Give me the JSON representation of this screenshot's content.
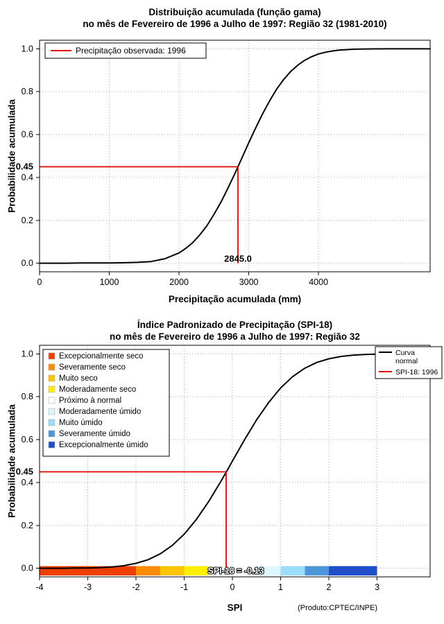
{
  "colors": {
    "background": "#ffffff",
    "grid": "#aaaaaa",
    "axis": "#000000",
    "curve": "#000000",
    "highlight": "#e00000"
  },
  "chart_data": [
    {
      "type": "line",
      "title": "Distribuição acumulada (função gama)",
      "subtitle": "no mês de Fevereiro de 1996 a Julho de 1997: Região 32 (1981-2010)",
      "xlabel": "Precipitação acumulada (mm)",
      "ylabel": "Probabilidade acumulada",
      "xlim": [
        0,
        5600
      ],
      "ylim": [
        0,
        1
      ],
      "xticks": [
        0,
        1000,
        2000,
        3000,
        4000
      ],
      "xtick_labels": [
        "0",
        "1000",
        "2000",
        "3000",
        "4000"
      ],
      "yticks": [
        0,
        0.2,
        0.4,
        0.6,
        0.8,
        1
      ],
      "ytick_labels": [
        "0.0",
        "0.2",
        "0.4",
        "0.6",
        "0.8",
        "1.0"
      ],
      "grid": true,
      "legend_position": "top-left",
      "legend": [
        {
          "label": "Precipitação observada: 1996",
          "color": "#e00000"
        }
      ],
      "curve": {
        "name": "gamma-cdf-curve",
        "color": "#000000",
        "x": [
          0,
          200,
          400,
          600,
          800,
          1000,
          1200,
          1400,
          1600,
          1800,
          2000,
          2100,
          2200,
          2300,
          2400,
          2500,
          2600,
          2700,
          2800,
          2845,
          2900,
          3000,
          3100,
          3200,
          3300,
          3400,
          3500,
          3600,
          3700,
          3800,
          3900,
          4000,
          4100,
          4200,
          4300,
          4400,
          4500,
          4600,
          4800,
          5000,
          5200,
          5400,
          5600
        ],
        "y": [
          0.0,
          0.0,
          0.0,
          0.001,
          0.001,
          0.001,
          0.002,
          0.004,
          0.008,
          0.021,
          0.048,
          0.07,
          0.097,
          0.133,
          0.175,
          0.227,
          0.284,
          0.349,
          0.418,
          0.45,
          0.49,
          0.562,
          0.632,
          0.698,
          0.758,
          0.812,
          0.857,
          0.894,
          0.923,
          0.946,
          0.963,
          0.976,
          0.984,
          0.99,
          0.994,
          0.996,
          0.998,
          0.999,
          0.9995,
          1.0,
          1.0,
          1.0,
          1.0
        ]
      },
      "marker": {
        "x": 2845,
        "y": 0.45,
        "x_label": "2845.0",
        "y_label": "0.45",
        "color": "#e00000"
      }
    },
    {
      "type": "line",
      "title": "Índice Padronizado de Precipitação (SPI-18)",
      "subtitle": "no mês de Fevereiro de 1996 a Julho de 1997: Região 32",
      "xlabel": "SPI",
      "ylabel": "Probabilidade acumulada",
      "footnote": "(Produto:CPTEC/INPE)",
      "xlim": [
        -4,
        4.1
      ],
      "ylim": [
        0,
        1
      ],
      "xticks": [
        -4,
        -3,
        -2,
        -1,
        0,
        1,
        2,
        3
      ],
      "xtick_labels": [
        "-4",
        "-3",
        "-2",
        "-1",
        "0",
        "1",
        "2",
        "3"
      ],
      "yticks": [
        0,
        0.2,
        0.4,
        0.6,
        0.8,
        1
      ],
      "ytick_labels": [
        "0.0",
        "0.2",
        "0.4",
        "0.6",
        "0.8",
        "1.0"
      ],
      "grid": true,
      "legend_classes": [
        {
          "label": "Excepcionalmente seco",
          "color": "#ee3f00"
        },
        {
          "label": "Severamente seco",
          "color": "#ff8c00"
        },
        {
          "label": "Muito seco",
          "color": "#ffc400"
        },
        {
          "label": "Moderadamente seco",
          "color": "#ffee00"
        },
        {
          "label": "Próximo à normal",
          "color": "#ffffff"
        },
        {
          "label": "Moderadamente úmido",
          "color": "#ddf6ff"
        },
        {
          "label": "Muito úmido",
          "color": "#9bdcf8"
        },
        {
          "label": "Severamente úmido",
          "color": "#4d96d9"
        },
        {
          "label": "Excepcionalmente úmido",
          "color": "#1f4ec8"
        }
      ],
      "legend_series": [
        {
          "label_lines": [
            "Curva",
            "normal"
          ],
          "color": "#000000"
        },
        {
          "label_lines": [
            "SPI-18: 1996"
          ],
          "color": "#e00000"
        }
      ],
      "colorbar": {
        "segments": [
          {
            "from": -4,
            "to": -2,
            "class_label": "Excepcionalmente seco",
            "color": "#ee3f00"
          },
          {
            "from": -2,
            "to": -1.5,
            "class_label": "Severamente seco",
            "color": "#ff8c00"
          },
          {
            "from": -1.5,
            "to": -1,
            "class_label": "Muito seco",
            "color": "#ffc400"
          },
          {
            "from": -1,
            "to": -0.5,
            "class_label": "Moderadamente seco",
            "color": "#ffee00"
          },
          {
            "from": -0.5,
            "to": 0.5,
            "class_label": "Próximo à normal",
            "color": "#ffffff"
          },
          {
            "from": 0.5,
            "to": 1,
            "class_label": "Moderadamente úmido",
            "color": "#ddf6ff"
          },
          {
            "from": 1,
            "to": 1.5,
            "class_label": "Muito úmido",
            "color": "#9bdcf8"
          },
          {
            "from": 1.5,
            "to": 2,
            "class_label": "Severamente úmido",
            "color": "#4d96d9"
          },
          {
            "from": 2,
            "to": 3,
            "class_label": "Excepcionalmente úmido",
            "color": "#1f4ec8"
          }
        ]
      },
      "curve": {
        "name": "normal-cdf-curve",
        "color": "#000000",
        "x": [
          -4,
          -3.75,
          -3.5,
          -3.25,
          -3,
          -2.75,
          -2.5,
          -2.25,
          -2,
          -1.75,
          -1.5,
          -1.25,
          -1,
          -0.75,
          -0.5,
          -0.25,
          -0.13,
          0,
          0.25,
          0.5,
          0.75,
          1,
          1.25,
          1.5,
          1.75,
          2,
          2.25,
          2.5,
          2.75,
          3,
          3.5,
          4.1
        ],
        "y": [
          0.0,
          0.0,
          0.0,
          0.001,
          0.001,
          0.003,
          0.006,
          0.012,
          0.023,
          0.04,
          0.067,
          0.106,
          0.159,
          0.227,
          0.309,
          0.401,
          0.448,
          0.5,
          0.599,
          0.692,
          0.773,
          0.841,
          0.894,
          0.933,
          0.96,
          0.977,
          0.988,
          0.994,
          0.997,
          0.999,
          1.0,
          1.0
        ]
      },
      "marker": {
        "x": -0.13,
        "y": 0.45,
        "label": "SPI-18 = -0.13",
        "y_label": "0.45",
        "color": "#e00000"
      }
    }
  ]
}
